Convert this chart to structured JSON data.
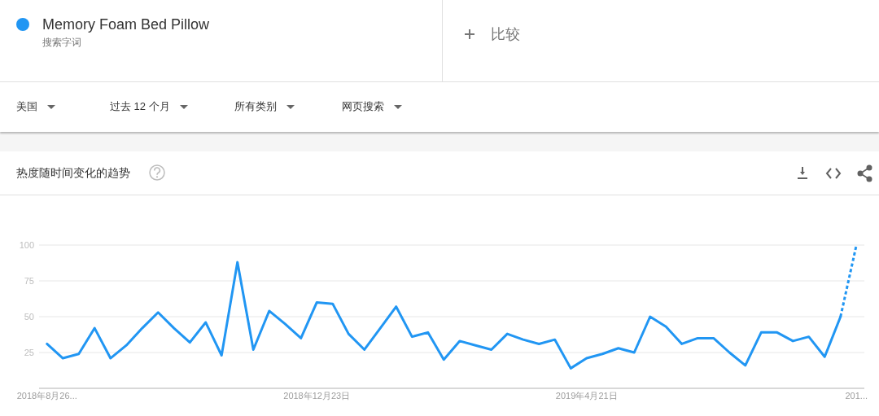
{
  "chart_data": {
    "type": "line",
    "title": "热度随时间变化的趋势",
    "annotations": [
      "搜索字词",
      "比较",
      "美国",
      "过去 12 个月",
      "所有类别",
      "网页搜索"
    ],
    "x": [
      "2018-08-26",
      "2018-09-02",
      "2018-09-09",
      "2018-09-16",
      "2018-09-23",
      "2018-09-30",
      "2018-10-07",
      "2018-10-14",
      "2018-10-21",
      "2018-10-28",
      "2018-11-04",
      "2018-11-11",
      "2018-11-18",
      "2018-11-25",
      "2018-12-02",
      "2018-12-09",
      "2018-12-16",
      "2018-12-23",
      "2018-12-30",
      "2019-01-06",
      "2019-01-13",
      "2019-01-20",
      "2019-01-27",
      "2019-02-03",
      "2019-02-10",
      "2019-02-17",
      "2019-02-24",
      "2019-03-03",
      "2019-03-10",
      "2019-03-17",
      "2019-03-24",
      "2019-03-31",
      "2019-04-07",
      "2019-04-14",
      "2019-04-21",
      "2019-04-28",
      "2019-05-05",
      "2019-05-12",
      "2019-05-19",
      "2019-05-26",
      "2019-06-02",
      "2019-06-09",
      "2019-06-16",
      "2019-06-23",
      "2019-06-30",
      "2019-07-07",
      "2019-07-14",
      "2019-07-21",
      "2019-07-28",
      "2019-08-04",
      "2019-08-11",
      "2019-08-18"
    ],
    "series": [
      {
        "name": "Memory Foam Bed Pillow",
        "color": "#2196f3",
        "line_style": "solid",
        "values": [
          31,
          21,
          24,
          42,
          21,
          30,
          42,
          53,
          42,
          32,
          46,
          23,
          88,
          27,
          54,
          45,
          35,
          60,
          59,
          38,
          27,
          42,
          57,
          36,
          39,
          20,
          33,
          30,
          27,
          38,
          34,
          31,
          34,
          14,
          21,
          24,
          28,
          25,
          50,
          43,
          31,
          35,
          35,
          25,
          16,
          39,
          39,
          33,
          36,
          22,
          50,
          null
        ]
      },
      {
        "color": "#2196f3",
        "line_style": "dotted",
        "values": [
          null,
          null,
          null,
          null,
          null,
          null,
          null,
          null,
          null,
          null,
          null,
          null,
          null,
          null,
          null,
          null,
          null,
          null,
          null,
          null,
          null,
          null,
          null,
          null,
          null,
          null,
          null,
          null,
          null,
          null,
          null,
          null,
          null,
          null,
          null,
          null,
          null,
          null,
          null,
          null,
          null,
          null,
          null,
          null,
          null,
          null,
          null,
          null,
          null,
          null,
          50,
          100
        ]
      }
    ],
    "xlim": [
      "2018-08-22T12:00",
      "2019-08-21T12:00"
    ],
    "xticks": [
      {
        "value": "2018-08-26",
        "label": "2018年8月26..."
      },
      {
        "value": "2018-12-23",
        "label": "2018年12月23日"
      },
      {
        "value": "2019-04-21",
        "label": "2019年4月21日"
      },
      {
        "value": "2019-08-18",
        "label": "201..."
      }
    ],
    "ylim": [
      0,
      100
    ],
    "yticks": [
      25,
      50,
      75,
      100
    ],
    "grid": "y",
    "legend": "top left"
  }
}
